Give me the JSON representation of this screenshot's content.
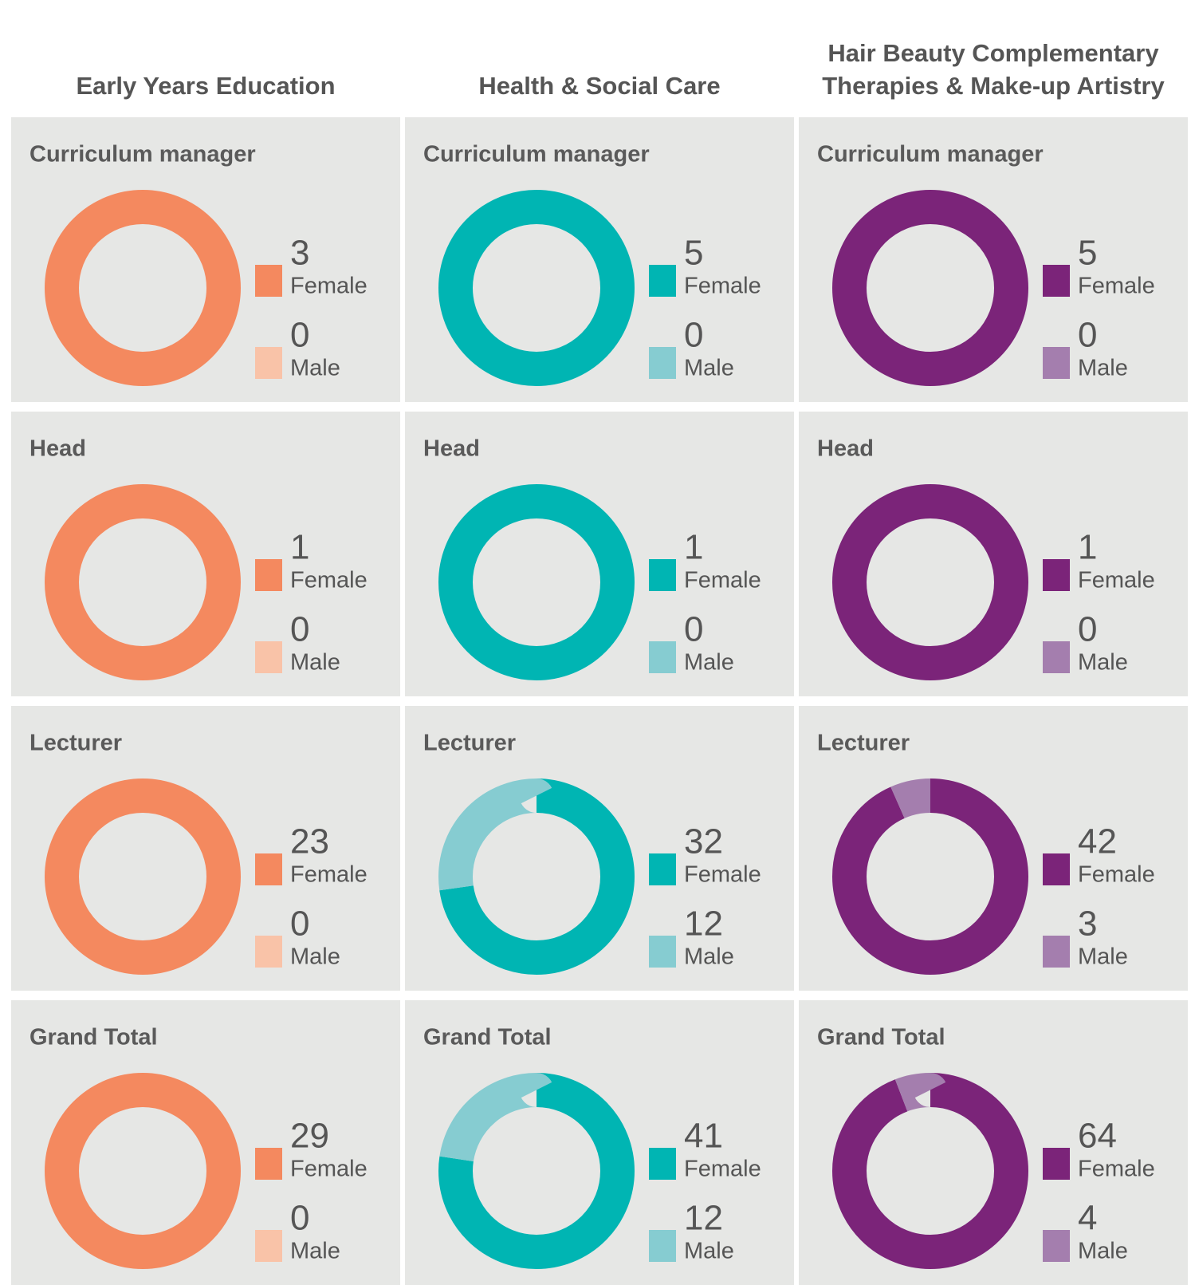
{
  "columns": [
    "Early Years Education",
    "Health & Social Care",
    "Hair Beauty Complementary Therapies & Make-up Artistry"
  ],
  "chart_data": [
    {
      "type": "donut",
      "title": "Curriculum manager",
      "categories": [
        "Female",
        "Male"
      ],
      "values": [
        3,
        0
      ],
      "colors": [
        "#f4895f",
        "#f9c3a8"
      ]
    },
    {
      "type": "donut",
      "title": "Curriculum manager",
      "categories": [
        "Female",
        "Male"
      ],
      "values": [
        5,
        0
      ],
      "colors": [
        "#00b5b3",
        "#86ccd1"
      ]
    },
    {
      "type": "donut",
      "title": "Curriculum manager",
      "categories": [
        "Female",
        "Male"
      ],
      "values": [
        5,
        0
      ],
      "colors": [
        "#7b2479",
        "#a47eae"
      ]
    },
    {
      "type": "donut",
      "title": "Head",
      "categories": [
        "Female",
        "Male"
      ],
      "values": [
        1,
        0
      ],
      "colors": [
        "#f4895f",
        "#f9c3a8"
      ]
    },
    {
      "type": "donut",
      "title": "Head",
      "categories": [
        "Female",
        "Male"
      ],
      "values": [
        1,
        0
      ],
      "colors": [
        "#00b5b3",
        "#86ccd1"
      ]
    },
    {
      "type": "donut",
      "title": "Head",
      "categories": [
        "Female",
        "Male"
      ],
      "values": [
        1,
        0
      ],
      "colors": [
        "#7b2479",
        "#a47eae"
      ]
    },
    {
      "type": "donut",
      "title": "Lecturer",
      "categories": [
        "Female",
        "Male"
      ],
      "values": [
        23,
        0
      ],
      "colors": [
        "#f4895f",
        "#f9c3a8"
      ]
    },
    {
      "type": "donut",
      "title": "Lecturer",
      "categories": [
        "Female",
        "Male"
      ],
      "values": [
        32,
        12
      ],
      "colors": [
        "#00b5b3",
        "#86ccd1"
      ]
    },
    {
      "type": "donut",
      "title": "Lecturer",
      "categories": [
        "Female",
        "Male"
      ],
      "values": [
        42,
        3
      ],
      "colors": [
        "#7b2479",
        "#a47eae"
      ]
    },
    {
      "type": "donut",
      "title": "Grand Total",
      "categories": [
        "Female",
        "Male"
      ],
      "values": [
        29,
        0
      ],
      "colors": [
        "#f4895f",
        "#f9c3a8"
      ]
    },
    {
      "type": "donut",
      "title": "Grand Total",
      "categories": [
        "Female",
        "Male"
      ],
      "values": [
        41,
        12
      ],
      "colors": [
        "#00b5b3",
        "#86ccd1"
      ]
    },
    {
      "type": "donut",
      "title": "Grand Total",
      "categories": [
        "Female",
        "Male"
      ],
      "values": [
        64,
        4
      ],
      "colors": [
        "#7b2479",
        "#a47eae"
      ]
    }
  ]
}
